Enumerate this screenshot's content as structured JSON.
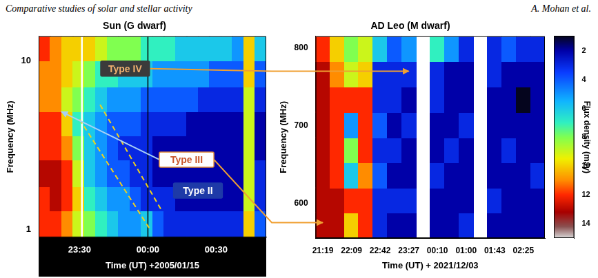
{
  "header": {
    "left": "Comparative studies of solar and stellar activity",
    "right": "A. Mohan et al."
  },
  "chart_data": [
    {
      "type": "heatmap",
      "title": "Sun (G dwarf)",
      "x_label": "Time (UT) +2005/01/15",
      "y_label": "Frequency (MHz)",
      "xlim": [
        1392,
        1492
      ],
      "xticks": [
        {
          "value": 1410,
          "label": "23:30"
        },
        {
          "value": 1440,
          "label": "00:00"
        },
        {
          "value": 1470,
          "label": "00:30"
        }
      ],
      "ylim": [
        0.9,
        14
      ],
      "yticks": [
        1,
        10
      ],
      "log": "y",
      "grid": false,
      "x_edges": [
        1392,
        1397,
        1402,
        1407,
        1412,
        1417,
        1422,
        1427,
        1432,
        1437,
        1442,
        1447,
        1452,
        1457,
        1462,
        1467,
        1472,
        1477,
        1482,
        1487,
        1492
      ],
      "y_edges": [
        0.9,
        1.3,
        1.8,
        2.6,
        3.6,
        5,
        7,
        10,
        14
      ],
      "zlim": [
        1,
        15
      ],
      "cells": [
        [
          12,
          12,
          13,
          12,
          12,
          11,
          11,
          12
        ],
        [
          12,
          13,
          13,
          12,
          12,
          11,
          11,
          11
        ],
        [
          11,
          12,
          12,
          11,
          10,
          9,
          10,
          10
        ],
        [
          9,
          10,
          9,
          8,
          7,
          8,
          9,
          10
        ],
        [
          8,
          7,
          6,
          6,
          6,
          7,
          8,
          10
        ],
        [
          7,
          6,
          5,
          5,
          5,
          6,
          7,
          9
        ],
        [
          6,
          5,
          4,
          4,
          4,
          5,
          7,
          8
        ],
        [
          5,
          5,
          4,
          3,
          4,
          5,
          6,
          8
        ],
        [
          5,
          4,
          3,
          3,
          4,
          5,
          6,
          8
        ],
        [
          6,
          3,
          3,
          3,
          3,
          4,
          6,
          7
        ],
        [
          4,
          3,
          2,
          2,
          3,
          4,
          5,
          7
        ],
        [
          3,
          3,
          2,
          2,
          3,
          4,
          5,
          7
        ],
        [
          3,
          2,
          2,
          2,
          3,
          4,
          5,
          6
        ],
        [
          3,
          2,
          2,
          2,
          2,
          4,
          5,
          6
        ],
        [
          3,
          2,
          2,
          2,
          2,
          3,
          5,
          6
        ],
        [
          3,
          2,
          2,
          2,
          2,
          3,
          4,
          6
        ],
        [
          3,
          2,
          2,
          2,
          2,
          3,
          4,
          6
        ],
        [
          3,
          2,
          2,
          2,
          2,
          3,
          4,
          5
        ],
        [
          10,
          9,
          9,
          9,
          9,
          9,
          10,
          10
        ],
        [
          4,
          3,
          3,
          2,
          2,
          3,
          4,
          6
        ]
      ],
      "vlines": [
        {
          "x": 1411,
          "color": "#ffffff"
        },
        {
          "x": 1440,
          "color": "#000000"
        }
      ],
      "lines": [
        {
          "x": [
            1410,
            1441
          ],
          "y": [
            4.5,
            1
          ],
          "color": "#f2d21a",
          "line_style": "dashed"
        },
        {
          "x": [
            1419,
            1446
          ],
          "y": [
            5.5,
            1.3
          ],
          "color": "#f2d21a",
          "line_style": "dashed"
        }
      ],
      "annotations": [
        {
          "text": "Type IV",
          "x": 1430,
          "y": 9,
          "color": "#f0b070",
          "targets": [
            {
              "chart": 1,
              "x": 6,
              "y": 770
            }
          ]
        },
        {
          "text": "Type III",
          "x": 1457,
          "y": 2.6,
          "color": "#c8552a",
          "targets": [
            {
              "chart": 0,
              "x": 1402,
              "y": 5
            },
            {
              "chart": 1,
              "x": 0,
              "y": 575
            }
          ]
        },
        {
          "text": "Type II",
          "x": 1462,
          "y": 1.7,
          "color": "#ffffff"
        }
      ]
    },
    {
      "type": "heatmap",
      "title": "AD Leo (M dwarf)",
      "x_label": "Time (UT) + 2021/12/03",
      "y_label": "Frequency (MHz)",
      "categories": [
        "21:19",
        null,
        "22:09",
        null,
        "22:42",
        null,
        "23:27",
        null,
        "00:10",
        null,
        "01:00",
        null,
        "01:43",
        null,
        "02:25",
        null
      ],
      "ylim": [
        555,
        815
      ],
      "yticks": [
        600,
        700,
        800
      ],
      "grid": false,
      "y_edges": [
        555,
        588,
        620,
        653,
        685,
        718,
        750,
        783,
        815
      ],
      "cells": [
        [
          13,
          13,
          13,
          13,
          13,
          13,
          13,
          12
        ],
        [
          13,
          13,
          12,
          12,
          12,
          12,
          11,
          10
        ],
        [
          10,
          12,
          6,
          8,
          5,
          12,
          9,
          8
        ],
        [
          12,
          12,
          11,
          12,
          12,
          12,
          10,
          9
        ],
        [
          3,
          3,
          4,
          3,
          4,
          3,
          3,
          6
        ],
        [
          2,
          3,
          2,
          3,
          2,
          3,
          3,
          4
        ],
        [
          2,
          3,
          2,
          2,
          3,
          2,
          3,
          5
        ],
        [
          null,
          null,
          null,
          null,
          null,
          null,
          null,
          null
        ],
        [
          2,
          2,
          3,
          2,
          2,
          3,
          3,
          7
        ],
        [
          2,
          2,
          2,
          3,
          2,
          2,
          2,
          5
        ],
        [
          3,
          2,
          2,
          2,
          3,
          2,
          2,
          3
        ],
        [
          null,
          null,
          null,
          null,
          null,
          null,
          null,
          null
        ],
        [
          2,
          3,
          2,
          2,
          2,
          2,
          3,
          3
        ],
        [
          2,
          2,
          2,
          3,
          2,
          2,
          2,
          4
        ],
        [
          2,
          2,
          2,
          2,
          2,
          1,
          2,
          3
        ],
        [
          2,
          2,
          3,
          2,
          2,
          2,
          2,
          3
        ]
      ],
      "colorbar": {
        "label": "Flux density (mJy)",
        "range": [
          1,
          15
        ],
        "ticks": [
          2,
          4,
          6,
          8,
          10,
          12,
          14
        ]
      }
    }
  ]
}
